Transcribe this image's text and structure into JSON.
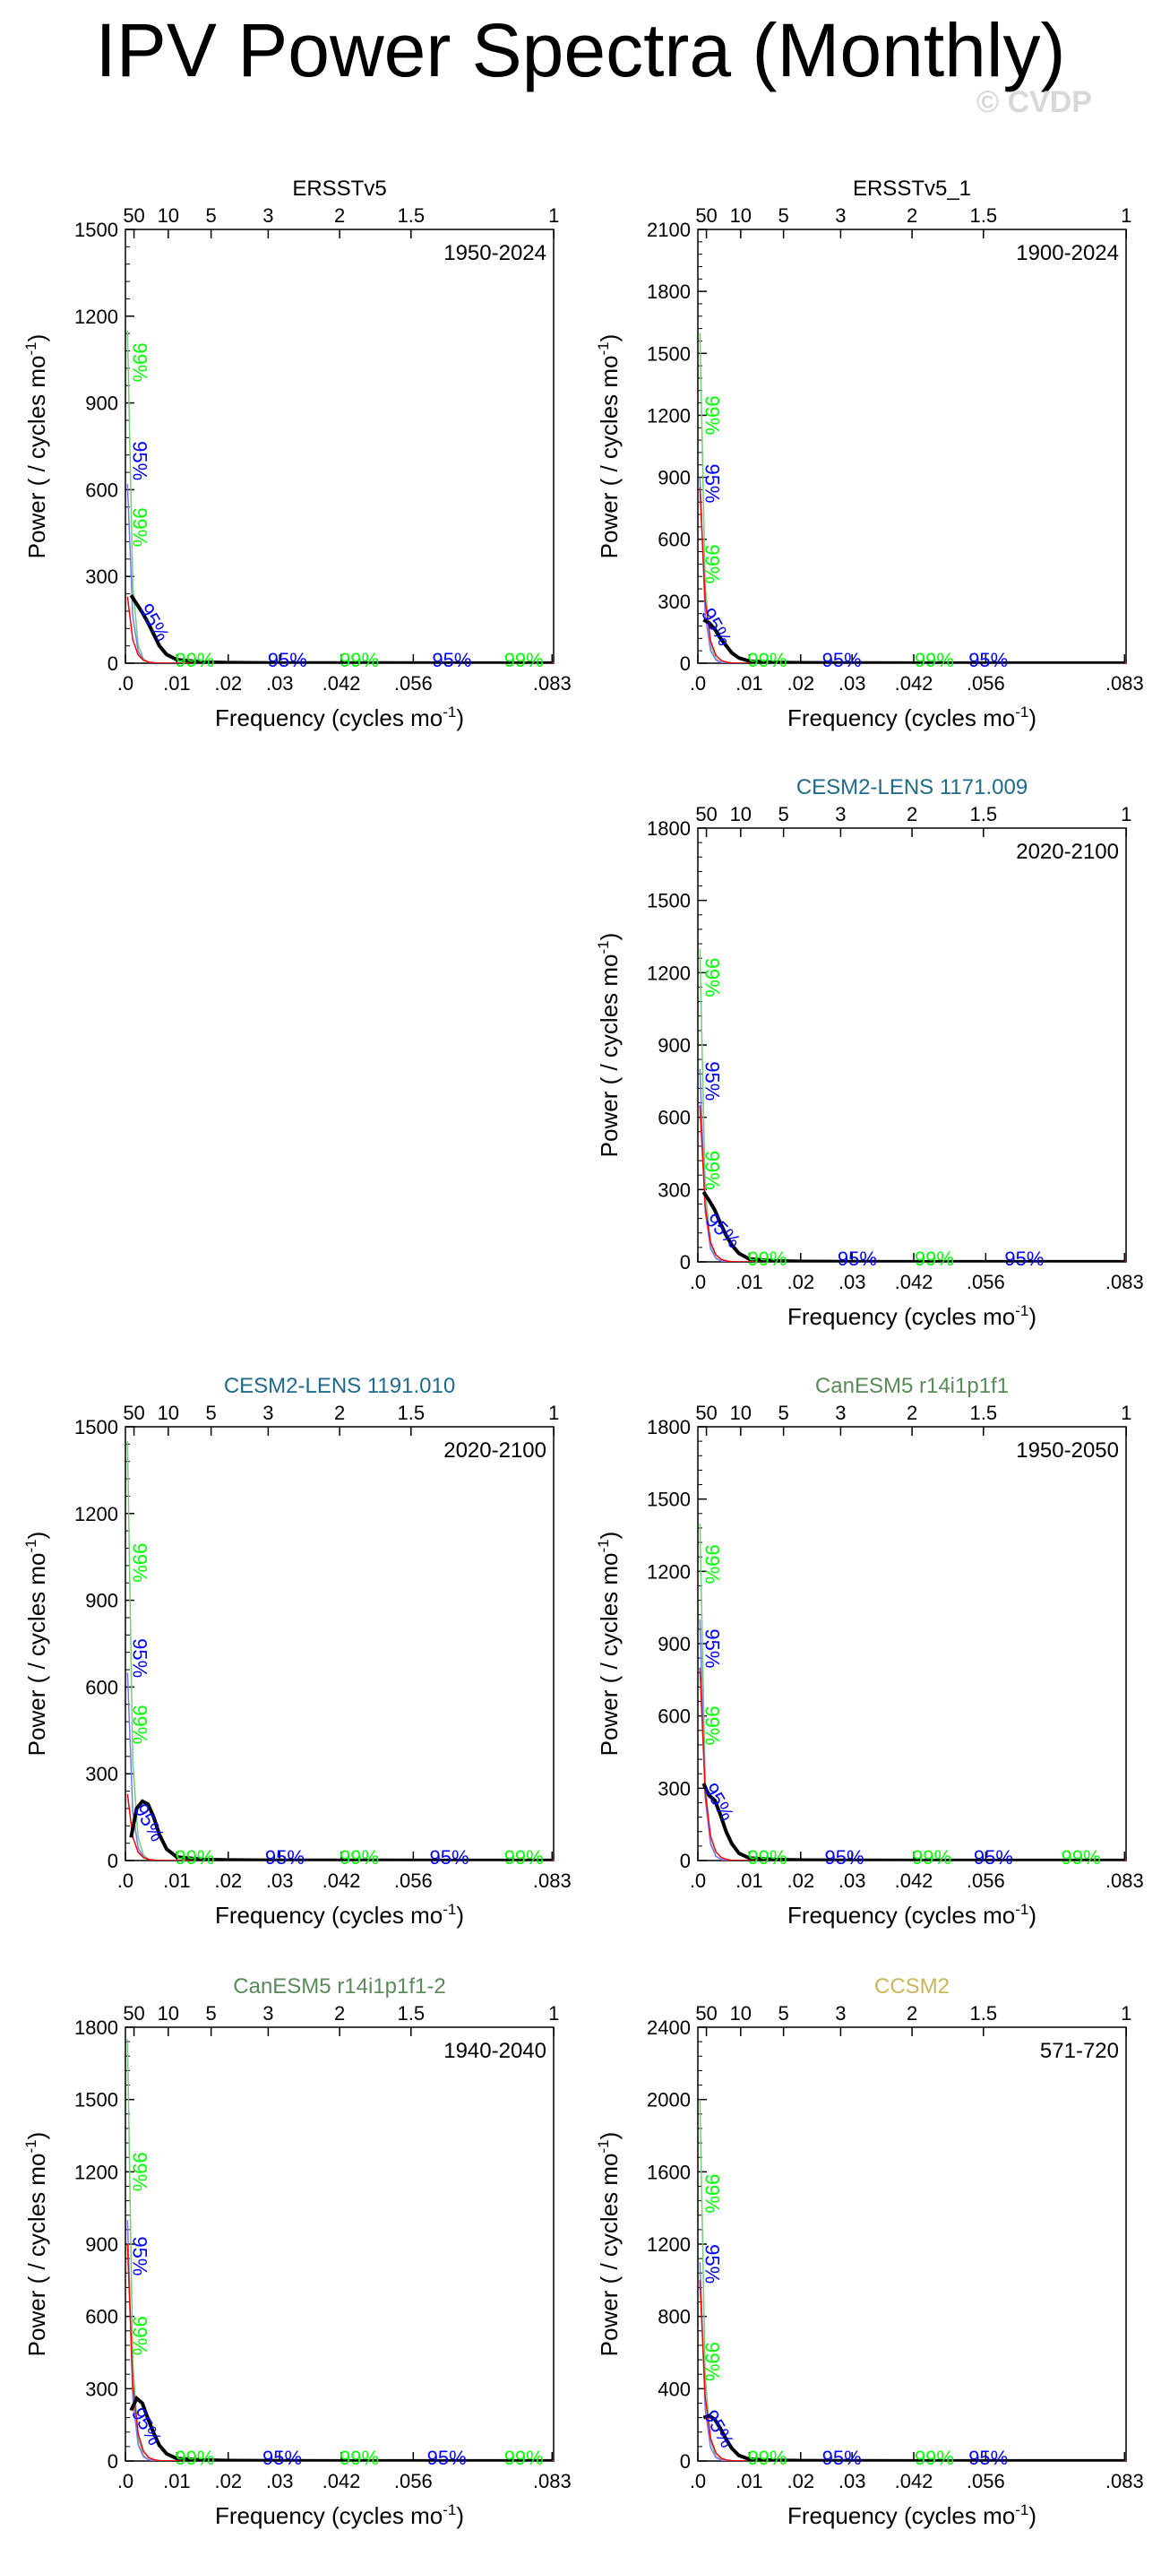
{
  "title": "IPV Power Spectra (Monthly)",
  "watermark": "© CVDP",
  "colors": {
    "spectrum": "#000000",
    "red_noise": "#ff0000",
    "sig95": "#0000ff",
    "sig99": "#00ff00",
    "ci_lower": "#7777ff",
    "ci_upper": "#77cc77"
  },
  "chart_data": [
    {
      "type": "line",
      "panel": "row1-left",
      "title": "ERSSTv5",
      "title_color": "#000000",
      "period": "1950-2024",
      "xlabel": "Frequency (cycles mo⁻¹)",
      "ylabel": "Power ( / cycles mo⁻¹)",
      "xlim": [
        0,
        0.0833
      ],
      "ylim": [
        0,
        1500
      ],
      "yticks": [
        0,
        300,
        600,
        900,
        1200,
        1500
      ],
      "xticks": [
        0,
        0.01,
        0.02,
        0.03,
        0.042,
        0.056,
        0.083
      ],
      "xtick_labels": [
        ".0",
        ".01",
        ".02",
        ".03",
        ".042",
        ".056",
        ".083"
      ],
      "top_ticks_years": [
        50,
        10,
        5,
        3,
        2,
        1.5,
        1
      ],
      "spectrum": {
        "x": [
          0.0011,
          0.0022,
          0.0033,
          0.0044,
          0.0055,
          0.0066,
          0.008,
          0.01,
          0.015,
          0.02,
          0.03,
          0.05,
          0.083
        ],
        "y": [
          235,
          205,
          175,
          140,
          100,
          60,
          30,
          12,
          4,
          2,
          1,
          0.5,
          0.3
        ]
      },
      "red_noise_peak": 230,
      "sig95_peak": 620,
      "sig99_peak": 1150,
      "sig_labels": [
        {
          "text": "99%",
          "x": 0.0015,
          "y": 1040,
          "color": "sig99",
          "rot": 90
        },
        {
          "text": "95%",
          "x": 0.0015,
          "y": 700,
          "color": "sig95",
          "rot": 90
        },
        {
          "text": "99%",
          "x": 0.0015,
          "y": 470,
          "color": "sig99",
          "rot": 90
        },
        {
          "text": "95%",
          "x": 0.0045,
          "y": 130,
          "color": "sig95",
          "rot": 60
        },
        {
          "text": "99%",
          "x": 0.0135,
          "y": 0,
          "color": "sig99",
          "rot": 0
        },
        {
          "text": "95%",
          "x": 0.0315,
          "y": 0,
          "color": "sig95",
          "rot": 0
        },
        {
          "text": "99%",
          "x": 0.0455,
          "y": 0,
          "color": "sig99",
          "rot": 0
        },
        {
          "text": "95%",
          "x": 0.0635,
          "y": 0,
          "color": "sig95",
          "rot": 0
        },
        {
          "text": "99%",
          "x": 0.0775,
          "y": 0,
          "color": "sig99",
          "rot": 0
        }
      ]
    },
    {
      "type": "line",
      "panel": "row1-right",
      "title": "ERSSTv5_1",
      "title_color": "#000000",
      "period": "1900-2024",
      "xlabel": "Frequency (cycles mo⁻¹)",
      "ylabel": "Power ( / cycles mo⁻¹)",
      "xlim": [
        0,
        0.0833
      ],
      "ylim": [
        0,
        2100
      ],
      "yticks": [
        0,
        300,
        600,
        900,
        1200,
        1500,
        1800,
        2100
      ],
      "xticks": [
        0,
        0.01,
        0.02,
        0.03,
        0.042,
        0.056,
        0.083
      ],
      "xtick_labels": [
        ".0",
        ".01",
        ".02",
        ".03",
        ".042",
        ".056",
        ".083"
      ],
      "top_ticks_years": [
        50,
        10,
        5,
        3,
        2,
        1.5,
        1
      ],
      "spectrum": {
        "x": [
          0.0011,
          0.0022,
          0.0033,
          0.0044,
          0.0055,
          0.0066,
          0.008,
          0.01,
          0.015,
          0.02,
          0.03,
          0.05,
          0.083
        ],
        "y": [
          210,
          195,
          165,
          120,
          85,
          50,
          25,
          10,
          4,
          2,
          1,
          0.5,
          0.3
        ]
      },
      "red_noise_peak": 850,
      "sig95_peak": 900,
      "sig99_peak": 1600,
      "sig_labels": [
        {
          "text": "99%",
          "x": 0.0015,
          "y": 1200,
          "color": "sig99",
          "rot": 90
        },
        {
          "text": "95%",
          "x": 0.0015,
          "y": 870,
          "color": "sig95",
          "rot": 90
        },
        {
          "text": "99%",
          "x": 0.0015,
          "y": 480,
          "color": "sig99",
          "rot": 90
        },
        {
          "text": "95%",
          "x": 0.0025,
          "y": 160,
          "color": "sig95",
          "rot": 60
        },
        {
          "text": "99%",
          "x": 0.0135,
          "y": 0,
          "color": "sig99",
          "rot": 0
        },
        {
          "text": "95%",
          "x": 0.028,
          "y": 0,
          "color": "sig95",
          "rot": 0
        },
        {
          "text": "99%",
          "x": 0.046,
          "y": 0,
          "color": "sig99",
          "rot": 0
        },
        {
          "text": "95%",
          "x": 0.0565,
          "y": 0,
          "color": "sig95",
          "rot": 0
        }
      ]
    },
    {
      "type": "line",
      "panel": "row2-right",
      "title": "CESM2-LENS 1171.009",
      "title_color": "#1f6a8a",
      "period": "2020-2100",
      "xlabel": "Frequency (cycles mo⁻¹)",
      "ylabel": "Power ( / cycles mo⁻¹)",
      "xlim": [
        0,
        0.0833
      ],
      "ylim": [
        0,
        1800
      ],
      "yticks": [
        0,
        300,
        600,
        900,
        1200,
        1500,
        1800
      ],
      "xticks": [
        0,
        0.01,
        0.02,
        0.03,
        0.042,
        0.056,
        0.083
      ],
      "xtick_labels": [
        ".0",
        ".01",
        ".02",
        ".03",
        ".042",
        ".056",
        ".083"
      ],
      "top_ticks_years": [
        50,
        10,
        5,
        3,
        2,
        1.5,
        1
      ],
      "spectrum": {
        "x": [
          0.0011,
          0.0022,
          0.0033,
          0.0044,
          0.0055,
          0.0066,
          0.008,
          0.01,
          0.015,
          0.02,
          0.03,
          0.05,
          0.083
        ],
        "y": [
          290,
          255,
          215,
          160,
          110,
          70,
          35,
          12,
          4,
          2,
          1,
          0.5,
          0.3
        ]
      },
      "red_noise_peak": 650,
      "sig95_peak": 800,
      "sig99_peak": 1300,
      "sig_labels": [
        {
          "text": "99%",
          "x": 0.0015,
          "y": 1180,
          "color": "sig99",
          "rot": 90
        },
        {
          "text": "95%",
          "x": 0.0015,
          "y": 750,
          "color": "sig95",
          "rot": 90
        },
        {
          "text": "99%",
          "x": 0.0015,
          "y": 380,
          "color": "sig99",
          "rot": 90
        },
        {
          "text": "95%",
          "x": 0.004,
          "y": 110,
          "color": "sig95",
          "rot": 45
        },
        {
          "text": "99%",
          "x": 0.0135,
          "y": 0,
          "color": "sig99",
          "rot": 0
        },
        {
          "text": "95%",
          "x": 0.031,
          "y": 0,
          "color": "sig95",
          "rot": 0
        },
        {
          "text": "99%",
          "x": 0.046,
          "y": 0,
          "color": "sig99",
          "rot": 0
        },
        {
          "text": "95%",
          "x": 0.0635,
          "y": 0,
          "color": "sig95",
          "rot": 0
        }
      ]
    },
    {
      "type": "line",
      "panel": "row3-left",
      "title": "CESM2-LENS 1191.010",
      "title_color": "#1f6a8a",
      "period": "2020-2100",
      "xlabel": "Frequency (cycles mo⁻¹)",
      "ylabel": "Power ( / cycles mo⁻¹)",
      "xlim": [
        0,
        0.0833
      ],
      "ylim": [
        0,
        1500
      ],
      "yticks": [
        0,
        300,
        600,
        900,
        1200,
        1500
      ],
      "xticks": [
        0,
        0.01,
        0.02,
        0.03,
        0.042,
        0.056,
        0.083
      ],
      "xtick_labels": [
        ".0",
        ".01",
        ".02",
        ".03",
        ".042",
        ".056",
        ".083"
      ],
      "top_ticks_years": [
        50,
        10,
        5,
        3,
        2,
        1.5,
        1
      ],
      "spectrum": {
        "x": [
          0.0011,
          0.0022,
          0.0033,
          0.0044,
          0.0055,
          0.0066,
          0.008,
          0.01,
          0.015,
          0.02,
          0.03,
          0.05,
          0.083
        ],
        "y": [
          80,
          180,
          205,
          195,
          150,
          90,
          40,
          12,
          4,
          2,
          1,
          0.5,
          0.3
        ]
      },
      "red_noise_peak": 230,
      "sig95_peak": 650,
      "sig99_peak": 1450,
      "sig_labels": [
        {
          "text": "99%",
          "x": 0.0015,
          "y": 1030,
          "color": "sig99",
          "rot": 90
        },
        {
          "text": "95%",
          "x": 0.0015,
          "y": 700,
          "color": "sig95",
          "rot": 90
        },
        {
          "text": "99%",
          "x": 0.0015,
          "y": 470,
          "color": "sig99",
          "rot": 90
        },
        {
          "text": "95%",
          "x": 0.0035,
          "y": 120,
          "color": "sig95",
          "rot": 60
        },
        {
          "text": "99%",
          "x": 0.0135,
          "y": 0,
          "color": "sig99",
          "rot": 0
        },
        {
          "text": "95%",
          "x": 0.031,
          "y": 0,
          "color": "sig95",
          "rot": 0
        },
        {
          "text": "99%",
          "x": 0.0455,
          "y": 0,
          "color": "sig99",
          "rot": 0
        },
        {
          "text": "95%",
          "x": 0.063,
          "y": 0,
          "color": "sig95",
          "rot": 0
        },
        {
          "text": "99%",
          "x": 0.0775,
          "y": 0,
          "color": "sig99",
          "rot": 0
        }
      ]
    },
    {
      "type": "line",
      "panel": "row3-right",
      "title": "CanESM5 r14i1p1f1",
      "title_color": "#5a8a5a",
      "period": "1950-2050",
      "xlabel": "Frequency (cycles mo⁻¹)",
      "ylabel": "Power ( / cycles mo⁻¹)",
      "xlim": [
        0,
        0.0833
      ],
      "ylim": [
        0,
        1800
      ],
      "yticks": [
        0,
        300,
        600,
        900,
        1200,
        1500,
        1800
      ],
      "xticks": [
        0,
        0.01,
        0.02,
        0.03,
        0.042,
        0.056,
        0.083
      ],
      "xtick_labels": [
        ".0",
        ".01",
        ".02",
        ".03",
        ".042",
        ".056",
        ".083"
      ],
      "top_ticks_years": [
        50,
        10,
        5,
        3,
        2,
        1.5,
        1
      ],
      "spectrum": {
        "x": [
          0.0011,
          0.0022,
          0.0033,
          0.0044,
          0.0055,
          0.0066,
          0.008,
          0.01,
          0.015,
          0.02,
          0.03,
          0.05,
          0.083
        ],
        "y": [
          320,
          270,
          250,
          190,
          120,
          70,
          30,
          10,
          4,
          2,
          1,
          0.5,
          0.3
        ]
      },
      "red_noise_peak": 800,
      "sig95_peak": 1000,
      "sig99_peak": 1400,
      "sig_labels": [
        {
          "text": "99%",
          "x": 0.0015,
          "y": 1230,
          "color": "sig99",
          "rot": 90
        },
        {
          "text": "95%",
          "x": 0.0015,
          "y": 880,
          "color": "sig95",
          "rot": 90
        },
        {
          "text": "99%",
          "x": 0.0015,
          "y": 560,
          "color": "sig99",
          "rot": 90
        },
        {
          "text": "95%",
          "x": 0.003,
          "y": 230,
          "color": "sig95",
          "rot": 60
        },
        {
          "text": "99%",
          "x": 0.0135,
          "y": 0,
          "color": "sig99",
          "rot": 0
        },
        {
          "text": "95%",
          "x": 0.0285,
          "y": 0,
          "color": "sig95",
          "rot": 0
        },
        {
          "text": "99%",
          "x": 0.0455,
          "y": 0,
          "color": "sig99",
          "rot": 0
        },
        {
          "text": "95%",
          "x": 0.0575,
          "y": 0,
          "color": "sig95",
          "rot": 0
        },
        {
          "text": "99%",
          "x": 0.0745,
          "y": 0,
          "color": "sig99",
          "rot": 0
        }
      ]
    },
    {
      "type": "line",
      "panel": "row4-left",
      "title": "CanESM5 r14i1p1f1-2",
      "title_color": "#5a8a5a",
      "period": "1940-2040",
      "xlabel": "Frequency (cycles mo⁻¹)",
      "ylabel": "Power ( / cycles mo⁻¹)",
      "xlim": [
        0,
        0.0833
      ],
      "ylim": [
        0,
        1800
      ],
      "yticks": [
        0,
        300,
        600,
        900,
        1200,
        1500,
        1800
      ],
      "xticks": [
        0,
        0.01,
        0.02,
        0.03,
        0.042,
        0.056,
        0.083
      ],
      "xtick_labels": [
        ".0",
        ".01",
        ".02",
        ".03",
        ".042",
        ".056",
        ".083"
      ],
      "top_ticks_years": [
        50,
        10,
        5,
        3,
        2,
        1.5,
        1
      ],
      "spectrum": {
        "x": [
          0.0011,
          0.0022,
          0.0033,
          0.0044,
          0.0055,
          0.0066,
          0.008,
          0.01,
          0.015,
          0.02,
          0.03,
          0.05,
          0.083
        ],
        "y": [
          210,
          260,
          240,
          175,
          115,
          65,
          30,
          10,
          4,
          2,
          1,
          0.5,
          0.3
        ]
      },
      "red_noise_peak": 900,
      "sig95_peak": 1000,
      "sig99_peak": 1750,
      "sig_labels": [
        {
          "text": "99%",
          "x": 0.0015,
          "y": 1200,
          "color": "sig99",
          "rot": 90
        },
        {
          "text": "95%",
          "x": 0.0015,
          "y": 850,
          "color": "sig95",
          "rot": 90
        },
        {
          "text": "99%",
          "x": 0.0015,
          "y": 520,
          "color": "sig99",
          "rot": 90
        },
        {
          "text": "95%",
          "x": 0.003,
          "y": 130,
          "color": "sig95",
          "rot": 60
        },
        {
          "text": "99%",
          "x": 0.0135,
          "y": 0,
          "color": "sig99",
          "rot": 0
        },
        {
          "text": "95%",
          "x": 0.0305,
          "y": 0,
          "color": "sig95",
          "rot": 0
        },
        {
          "text": "99%",
          "x": 0.0455,
          "y": 0,
          "color": "sig99",
          "rot": 0
        },
        {
          "text": "95%",
          "x": 0.0625,
          "y": 0,
          "color": "sig95",
          "rot": 0
        },
        {
          "text": "99%",
          "x": 0.0775,
          "y": 0,
          "color": "sig99",
          "rot": 0
        }
      ]
    },
    {
      "type": "line",
      "panel": "row4-right",
      "title": "CCSM2",
      "title_color": "#c8b85a",
      "period": "571-720",
      "xlabel": "Frequency (cycles mo⁻¹)",
      "ylabel": "Power ( / cycles mo⁻¹)",
      "xlim": [
        0,
        0.0833
      ],
      "ylim": [
        0,
        2400
      ],
      "yticks": [
        0,
        400,
        800,
        1200,
        1600,
        2000,
        2400
      ],
      "xticks": [
        0,
        0.01,
        0.02,
        0.03,
        0.042,
        0.056,
        0.083
      ],
      "xtick_labels": [
        ".0",
        ".01",
        ".02",
        ".03",
        ".042",
        ".056",
        ".083"
      ],
      "top_ticks_years": [
        50,
        10,
        5,
        3,
        2,
        1.5,
        1
      ],
      "spectrum": {
        "x": [
          0.0011,
          0.0022,
          0.0033,
          0.0044,
          0.0055,
          0.0066,
          0.008,
          0.01,
          0.015,
          0.02,
          0.03,
          0.05,
          0.083
        ],
        "y": [
          240,
          250,
          230,
          180,
          120,
          70,
          30,
          10,
          4,
          2,
          1,
          0.5,
          0.3
        ]
      },
      "red_noise_peak": 1000,
      "sig95_peak": 1100,
      "sig99_peak": 2000,
      "sig_labels": [
        {
          "text": "99%",
          "x": 0.0015,
          "y": 1480,
          "color": "sig99",
          "rot": 90
        },
        {
          "text": "95%",
          "x": 0.0015,
          "y": 1090,
          "color": "sig95",
          "rot": 90
        },
        {
          "text": "99%",
          "x": 0.0015,
          "y": 550,
          "color": "sig99",
          "rot": 90
        },
        {
          "text": "95%",
          "x": 0.003,
          "y": 160,
          "color": "sig95",
          "rot": 60
        },
        {
          "text": "99%",
          "x": 0.0135,
          "y": 0,
          "color": "sig99",
          "rot": 0
        },
        {
          "text": "95%",
          "x": 0.028,
          "y": 0,
          "color": "sig95",
          "rot": 0
        },
        {
          "text": "99%",
          "x": 0.046,
          "y": 0,
          "color": "sig99",
          "rot": 0
        },
        {
          "text": "95%",
          "x": 0.0565,
          "y": 0,
          "color": "sig95",
          "rot": 0
        }
      ]
    }
  ]
}
